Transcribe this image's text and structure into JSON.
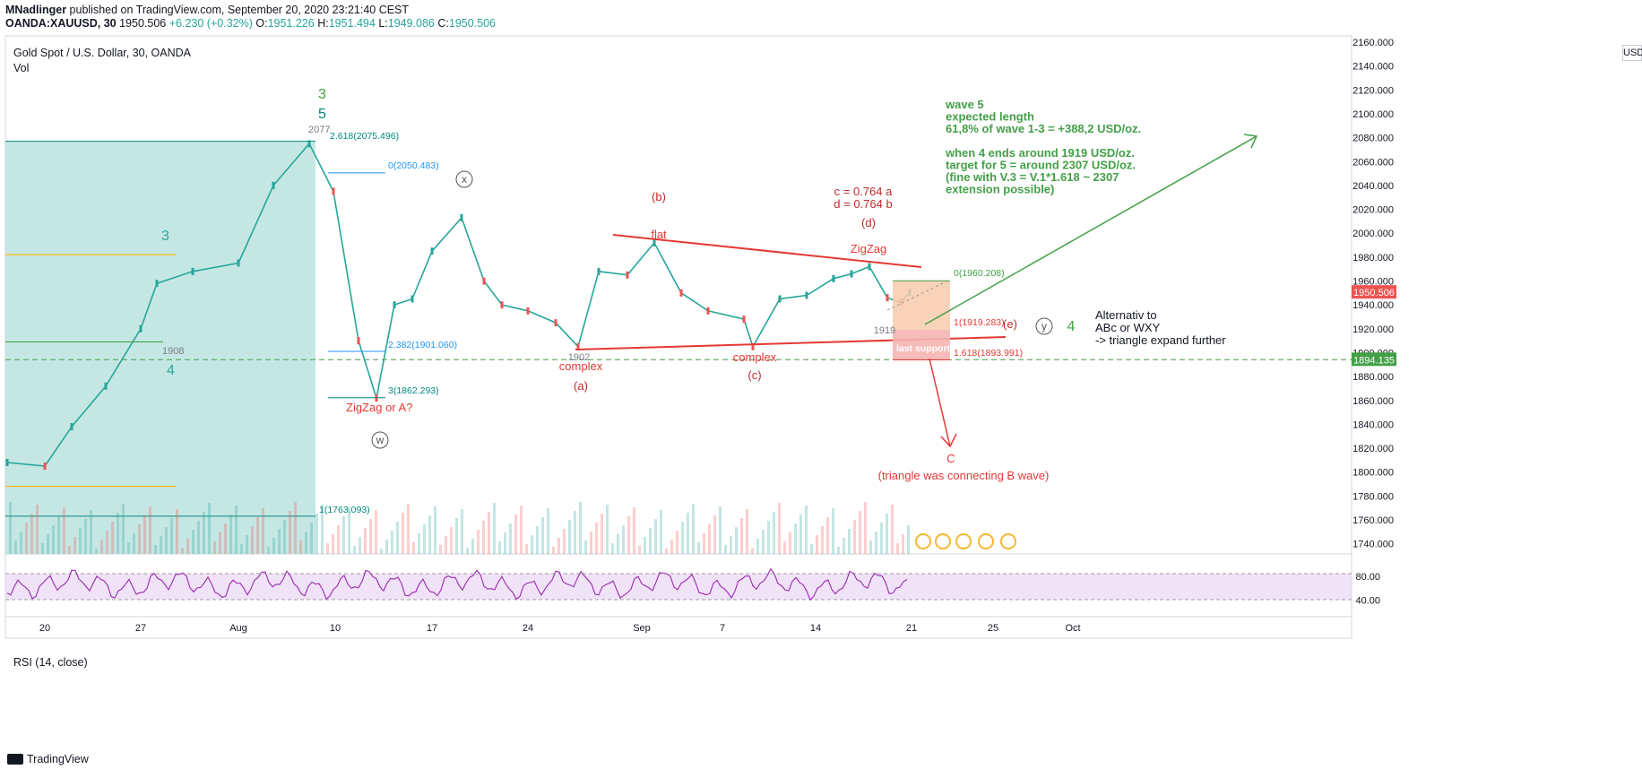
{
  "header": {
    "author": "MNadlinger",
    "published": "published on TradingView.com, September 20, 2020 23:21:40 CEST",
    "symbol": "OANDA:XAUUSD, 30",
    "last": "1950.506",
    "change": "+6.230 (+0.32%)",
    "o_label": "O:",
    "o": "1951.226",
    "h_label": "H:",
    "h": "1951.494",
    "l_label": "L:",
    "l": "1949.086",
    "c_label": "C:",
    "c": "1950.506"
  },
  "legend": {
    "title": "Gold Spot / U.S. Dollar, 30, OANDA",
    "vol": "Vol",
    "rsi": "RSI (14, close)"
  },
  "currency_button": "USD",
  "brand": "TradingView",
  "colors": {
    "up": "#26a69a",
    "down": "#ef5350",
    "annotation_red": "#e53935",
    "annotation_green": "#43a047",
    "teal_box": "#b2dfdb",
    "rsi": "#9c27b0",
    "price_tag": "#ef5350",
    "level_tag": "#43a047"
  },
  "chart_data": [
    {
      "type": "line",
      "series": [
        {
          "values_note": "",
          "name": ""
        }
      ],
      "price_series": {
        "x": [
          "Jul 18",
          "Jul 20",
          "Jul 22",
          "Jul 24",
          "Jul 27",
          "Jul 28",
          "Jul 30",
          "Aug 3",
          "Aug 5",
          "Aug 7",
          "Aug 10",
          "Aug 11",
          "Aug 12",
          "Aug 13",
          "Aug 14",
          "Aug 17",
          "Aug 18",
          "Aug 19",
          "Aug 21",
          "Aug 24",
          "Aug 26",
          "Aug 27",
          "Aug 28",
          "Aug 31",
          "Sep 1",
          "Sep 3",
          "Sep 4",
          "Sep 7",
          "Sep 8",
          "Sep 9",
          "Sep 11",
          "Sep 14",
          "Sep 16",
          "Sep 17",
          "Sep 18",
          "Sep 19",
          "Sep 20"
        ],
        "y": [
          1808,
          1805,
          1838,
          1872,
          1920,
          1958,
          1968,
          1975,
          2040,
          2075,
          2035,
          1910,
          1862,
          1940,
          1945,
          1985,
          2013,
          1960,
          1940,
          1935,
          1925,
          1905,
          1968,
          1965,
          1992,
          1950,
          1935,
          1928,
          1905,
          1945,
          1948,
          1962,
          1966,
          1972,
          1946,
          1942,
          1950.5
        ]
      },
      "y_axis_ticks": [
        "2160.000",
        "2140.000",
        "2120.000",
        "2100.000",
        "2080.000",
        "2060.000",
        "2040.000",
        "2020.000",
        "2000.000",
        "1980.000",
        "1960.000",
        "1940.000",
        "1920.000",
        "1900.000",
        "1880.000",
        "1860.000",
        "1840.000",
        "1820.000",
        "1800.000",
        "1780.000",
        "1760.000",
        "1740.000"
      ],
      "ylim": [
        1730,
        2170
      ],
      "x_axis_ticks": [
        "20",
        "27",
        "Aug",
        "10",
        "17",
        "24",
        "Sep",
        "7",
        "14",
        "21",
        "25",
        "Oct"
      ],
      "price_labels": {
        "last": "1950.506",
        "level": "1894.135"
      },
      "levels": [
        {
          "label": "2.618(2075.496)",
          "price": 2075.496
        },
        {
          "label": "0(2050.483)",
          "price": 2050.483
        },
        {
          "label": "2.382(1901.060)",
          "price": 1901.06
        },
        {
          "label": "3(1862.293)",
          "price": 1862.293
        },
        {
          "label": "1(1763.093)",
          "price": 1763.093
        },
        {
          "label": "0(1960.208)",
          "price": 1960.208
        },
        {
          "label": "1(1919.283)",
          "price": 1919.283
        },
        {
          "label": "1.618(1893.991)",
          "price": 1893.991
        }
      ],
      "annotations": {
        "w3_top": "3",
        "w5_top": "5",
        "peak": "2077",
        "w3_left": "3",
        "w4_left": "4",
        "low_left": "1908",
        "x_circle": "x",
        "w_circle": "w",
        "y_circle": "y",
        "zigzag_a": "ZigZag or A?",
        "b": "(b)",
        "flat": "flat",
        "a": "(a)",
        "complex_a": "complex",
        "low_a": "1902",
        "c": "(c)",
        "complex_c": "complex",
        "cd_1": "c = 0.764 a",
        "cd_2": "d = 0.764 b",
        "d": "(d)",
        "zigzag_d": "ZigZag",
        "e": "(e)",
        "low_e": "1919",
        "last_support": "last support",
        "wave4": "4",
        "alt_1": "Alternativ to",
        "alt_2": "ABc or WXY",
        "alt_3": "-> triangle expand further",
        "bigC": "C",
        "bigC_note": "(triangle was connecting B wave)",
        "green_note": [
          "wave 5",
          "expected length",
          "61,8% of wave 1-3 = +388,2 USD/oz.",
          "",
          "when 4 ends around 1919 USD/oz.",
          "target for 5 = around 2307 USD/oz.",
          "(fine with V.3 = V.1*1.618 ~ 2307",
          "extension possible)"
        ]
      }
    },
    {
      "type": "line",
      "title": "RSI (14, close)",
      "y_axis_ticks": [
        "80.00",
        "40.00"
      ],
      "ylim": [
        20,
        95
      ],
      "bands": [
        70,
        30
      ]
    }
  ]
}
